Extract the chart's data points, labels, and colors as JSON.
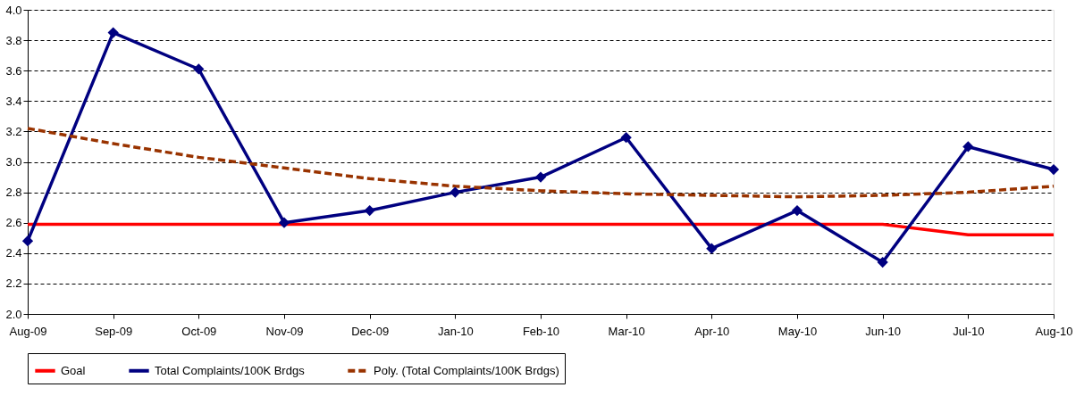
{
  "chart_data": {
    "type": "line",
    "categories": [
      "Aug-09",
      "Sep-09",
      "Oct-09",
      "Nov-09",
      "Dec-09",
      "Jan-10",
      "Feb-10",
      "Mar-10",
      "Apr-10",
      "May-10",
      "Jun-10",
      "Jul-10",
      "Aug-10"
    ],
    "series": [
      {
        "name": "Goal",
        "color": "#ff0000",
        "marker": "none",
        "line_style": "solid",
        "values": [
          2.59,
          2.59,
          2.59,
          2.59,
          2.59,
          2.59,
          2.59,
          2.59,
          2.59,
          2.59,
          2.59,
          2.52,
          2.52
        ]
      },
      {
        "name": "Total Complaints/100K Brdgs",
        "color": "#000080",
        "marker": "diamond",
        "line_style": "solid",
        "values": [
          2.48,
          3.85,
          3.61,
          2.6,
          2.68,
          2.8,
          2.9,
          3.16,
          2.43,
          2.68,
          2.34,
          3.1,
          2.95
        ]
      },
      {
        "name": "Poly. (Total Complaints/100K Brdgs)",
        "color": "#993300",
        "marker": "none",
        "line_style": "dashed",
        "values": [
          3.22,
          3.12,
          3.03,
          2.96,
          2.89,
          2.84,
          2.81,
          2.79,
          2.78,
          2.77,
          2.78,
          2.8,
          2.84
        ]
      }
    ],
    "ylim": [
      2.0,
      4.0
    ],
    "yticks": [
      {
        "value": 2.0,
        "label": "2.0"
      },
      {
        "value": 2.2,
        "label": "2.2"
      },
      {
        "value": 2.4,
        "label": "2.4"
      },
      {
        "value": 2.6,
        "label": "2.6"
      },
      {
        "value": 2.8,
        "label": "2.8"
      },
      {
        "value": 3.0,
        "label": "3.0"
      },
      {
        "value": 3.2,
        "label": "3.2"
      },
      {
        "value": 3.4,
        "label": "3.4"
      },
      {
        "value": 3.6,
        "label": "3.6"
      },
      {
        "value": 3.8,
        "label": "3.8"
      },
      {
        "value": 4.0,
        "label": "4.0"
      }
    ],
    "grid": "y",
    "legend": "bottom"
  }
}
